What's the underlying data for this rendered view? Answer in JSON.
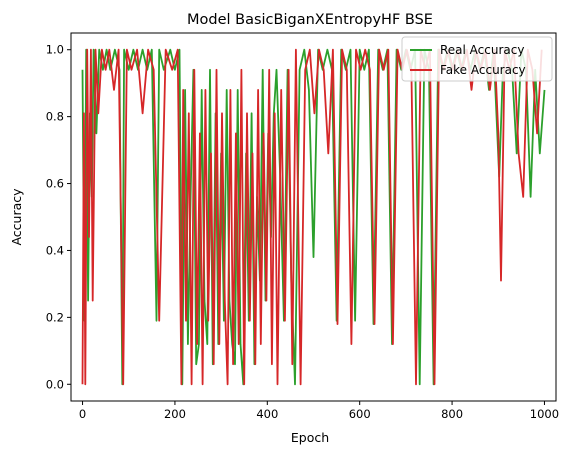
{
  "chart_data": {
    "type": "line",
    "title": "Model BasicBiganXEntropyHF BSE",
    "xlabel": "Epoch",
    "ylabel": "Accuracy",
    "xlim": [
      -25,
      1025
    ],
    "ylim": [
      -0.05,
      1.05
    ],
    "xticks": [
      0,
      200,
      400,
      600,
      800,
      1000
    ],
    "yticks": [
      0.0,
      0.2,
      0.4,
      0.6,
      0.8,
      1.0
    ],
    "xtick_labels": [
      "0",
      "200",
      "400",
      "600",
      "800",
      "1000"
    ],
    "ytick_labels": [
      "0.0",
      "0.2",
      "0.4",
      "0.6",
      "0.8",
      "1.0"
    ],
    "legend_position": "top-right",
    "grid": false,
    "series": [
      {
        "name": "Real Accuracy",
        "color": "#2ca02c",
        "x": [
          0,
          4,
          8,
          12,
          16,
          20,
          24,
          30,
          36,
          44,
          52,
          60,
          70,
          80,
          86,
          90,
          100,
          110,
          120,
          130,
          140,
          150,
          160,
          166,
          176,
          190,
          200,
          210,
          216,
          222,
          228,
          234,
          240,
          246,
          252,
          258,
          264,
          270,
          276,
          282,
          288,
          294,
          300,
          306,
          312,
          318,
          324,
          330,
          336,
          342,
          348,
          354,
          360,
          366,
          372,
          378,
          384,
          390,
          396,
          402,
          408,
          414,
          420,
          428,
          436,
          444,
          452,
          460,
          470,
          480,
          490,
          500,
          510,
          520,
          530,
          540,
          550,
          560,
          570,
          580,
          590,
          600,
          610,
          620,
          630,
          640,
          650,
          660,
          670,
          680,
          690,
          700,
          710,
          720,
          730,
          740,
          750,
          760,
          770,
          780,
          790,
          800,
          810,
          820,
          830,
          840,
          850,
          860,
          870,
          880,
          890,
          896,
          902,
          910,
          920,
          930,
          940,
          950,
          960,
          970,
          980,
          990,
          1000
        ],
        "values": [
          0.94,
          0.19,
          1.0,
          0.25,
          0.81,
          0.56,
          1.0,
          0.75,
          1.0,
          0.94,
          1.0,
          0.94,
          1.0,
          0.94,
          0.0,
          1.0,
          0.94,
          1.0,
          0.94,
          1.0,
          0.94,
          1.0,
          0.19,
          1.0,
          0.94,
          1.0,
          0.94,
          1.0,
          0.0,
          0.88,
          0.12,
          0.56,
          0.94,
          0.06,
          0.12,
          0.88,
          0.25,
          0.12,
          0.94,
          0.06,
          0.81,
          0.12,
          0.69,
          0.19,
          0.88,
          0.25,
          0.12,
          0.06,
          0.88,
          0.12,
          0.0,
          0.69,
          0.19,
          0.81,
          0.06,
          0.56,
          0.31,
          0.94,
          0.25,
          0.75,
          0.44,
          0.81,
          0.94,
          0.62,
          0.19,
          0.94,
          0.31,
          0.0,
          0.94,
          1.0,
          0.88,
          0.38,
          1.0,
          0.94,
          1.0,
          0.94,
          0.19,
          1.0,
          0.94,
          1.0,
          0.19,
          1.0,
          0.94,
          1.0,
          0.18,
          1.0,
          0.94,
          1.0,
          0.12,
          1.0,
          0.94,
          1.0,
          0.94,
          1.0,
          0.0,
          1.0,
          0.94,
          0.0,
          1.0,
          0.94,
          1.0,
          0.94,
          1.0,
          0.94,
          1.0,
          0.94,
          1.0,
          0.94,
          1.0,
          0.88,
          1.0,
          0.81,
          0.62,
          0.94,
          1.0,
          0.94,
          0.69,
          1.0,
          0.94,
          0.56,
          0.94,
          0.69,
          0.88
        ]
      },
      {
        "name": "Fake Accuracy",
        "color": "#d62728",
        "x": [
          0,
          3,
          6,
          10,
          14,
          18,
          22,
          28,
          34,
          42,
          50,
          58,
          68,
          78,
          88,
          96,
          106,
          118,
          130,
          142,
          154,
          166,
          180,
          194,
          206,
          214,
          218,
          224,
          230,
          236,
          242,
          248,
          254,
          260,
          266,
          272,
          278,
          284,
          290,
          296,
          302,
          308,
          314,
          320,
          326,
          332,
          338,
          344,
          350,
          356,
          362,
          368,
          374,
          380,
          386,
          392,
          398,
          404,
          410,
          416,
          422,
          430,
          438,
          446,
          454,
          462,
          472,
          482,
          492,
          502,
          512,
          522,
          532,
          542,
          552,
          562,
          572,
          582,
          592,
          602,
          612,
          622,
          632,
          642,
          652,
          662,
          672,
          682,
          692,
          702,
          712,
          722,
          732,
          742,
          752,
          762,
          772,
          782,
          792,
          802,
          812,
          822,
          832,
          842,
          852,
          862,
          872,
          882,
          892,
          900,
          906,
          914,
          924,
          934,
          944,
          954,
          964,
          974,
          984,
          994
        ],
        "values": [
          0.0,
          0.81,
          0.0,
          1.0,
          0.44,
          1.0,
          0.25,
          1.0,
          0.81,
          1.0,
          0.94,
          1.0,
          0.88,
          1.0,
          0.0,
          1.0,
          0.94,
          1.0,
          0.81,
          1.0,
          0.94,
          0.19,
          1.0,
          0.94,
          1.0,
          0.0,
          0.88,
          0.19,
          0.81,
          0.0,
          0.94,
          0.12,
          0.75,
          0.0,
          0.88,
          0.19,
          0.69,
          0.06,
          0.94,
          0.12,
          0.81,
          0.25,
          0.0,
          0.88,
          0.06,
          0.75,
          0.12,
          0.94,
          0.0,
          0.81,
          0.19,
          0.69,
          0.06,
          0.88,
          0.12,
          0.75,
          0.25,
          0.94,
          0.06,
          0.81,
          0.0,
          0.88,
          0.19,
          0.94,
          0.06,
          1.0,
          0.0,
          0.94,
          1.0,
          0.81,
          1.0,
          0.94,
          0.69,
          1.0,
          0.18,
          1.0,
          0.94,
          0.12,
          1.0,
          0.94,
          1.0,
          0.94,
          0.18,
          1.0,
          0.94,
          1.0,
          0.12,
          1.0,
          0.94,
          1.0,
          0.94,
          0.0,
          1.0,
          0.94,
          1.0,
          0.0,
          1.0,
          0.94,
          1.0,
          0.94,
          1.0,
          0.94,
          1.0,
          0.88,
          1.0,
          0.94,
          1.0,
          0.88,
          1.0,
          0.75,
          0.31,
          1.0,
          0.94,
          1.0,
          0.69,
          0.56,
          1.0,
          0.94,
          0.75,
          1.0
        ]
      }
    ]
  }
}
